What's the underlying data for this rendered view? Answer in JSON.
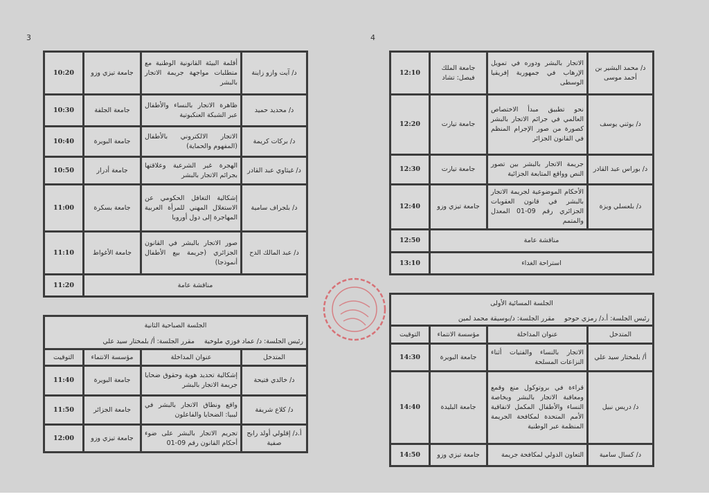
{
  "pages": {
    "left_number": "3",
    "right_number": "4"
  },
  "colors": {
    "paper": "#d3d3d3",
    "cell": "#d9d9d9",
    "border": "#3c3c3c",
    "stamp": "#d9474f"
  },
  "stamp": {
    "icon": "red-circular-seal-icon"
  },
  "left_top": {
    "rows": [
      {
        "type": "row",
        "speaker": "د/ آيت وازو زاينة",
        "title": "أقلمة البيئة القانونية الوطنية مع متطلبات مواجهة جريمة الاتجار بالبشر",
        "university": "جامعة تيزي وزو",
        "time": "10:20"
      },
      {
        "type": "row",
        "speaker": "د/ محديد حميد",
        "title": "ظاهرة الاتجار بالنساء والأطفال عبر الشبكة العنكبوتية",
        "university": "جامعة الجلفة",
        "time": "10:30"
      },
      {
        "type": "row",
        "speaker": "د/ بركات كريمة",
        "title": "الاتجار الالكتروني بالأطفال (المفهوم والحماية)",
        "university": "جامعة البويرة",
        "time": "10:40"
      },
      {
        "type": "row",
        "speaker": "د/ غيثاوي عبد القادر",
        "title": "الهجرة غير الشرعية وعلاقتها بجرائم الاتجار بالبشر",
        "university": "جامعة أدرار",
        "time": "10:50"
      },
      {
        "type": "row",
        "speaker": "د/ بلجراف سامية",
        "title": "إشكالية التغافل الحكومي عن الاستغلال المهني للمرأة العربية المهاجرة إلى دول أوروبا",
        "university": "جامعة بسكرة",
        "time": "11:00"
      },
      {
        "type": "row",
        "speaker": "د/ عبد المالك الدح",
        "title": "صور الاتجار بالبشر في القانون الجزائري (جريمة بيع الأطفال أنموذجا)",
        "university": "جامعة الأغواط",
        "time": "11:10"
      },
      {
        "type": "general",
        "label": "مناقشة عامة",
        "time": "11:20"
      }
    ]
  },
  "left_bottom": {
    "session_title": "الجلسة الصباحية الثانية",
    "chair": "رئيس الجلسة: د/ عماد فوزي ملوخية",
    "rapporteur": "مقرر الجلسة: أ/ بلمختار سيد علي",
    "columns": {
      "speaker": "المتدخل",
      "title": "عنوان المداخلة",
      "university": "مؤسسة الانتماء",
      "time": "التوقيت"
    },
    "rows": [
      {
        "type": "row",
        "speaker": "د/ خالدي فتيحة",
        "title": "إشكالية تحديد هوية وحقوق ضحايا جريمة الاتجار بالبشر",
        "university": "جامعة البويرة",
        "time": "11:40"
      },
      {
        "type": "row",
        "speaker": "د/ كلاع شريفة",
        "title": "واقع ونطاق الاتجار بالبشر في ليبيا: الضحايا والفاعلون",
        "university": "جامعة الجزائر",
        "time": "11:50"
      },
      {
        "type": "row",
        "speaker": "أ.د/ إقلولي أولد رابح صفية",
        "title": "تجريم الاتجار بالبشر على ضوء أحكام القانون رقم 09-01",
        "university": "جامعة تيزي وزو",
        "time": "12:00"
      }
    ]
  },
  "right_top": {
    "rows": [
      {
        "type": "row",
        "speaker": "د/ محمد البشير بن أحمد موسى",
        "title": "الاتجار بالبشر ودوره في تمويل الإرهاب في جمهورية إفريقيا الوسطى",
        "university": "جامعة الملك فيصل: تشاد",
        "time": "12:10"
      },
      {
        "type": "row",
        "speaker": "د/ بوثني يوسف",
        "title": "نحو تطبيق مبدأ الاختصاص العالمي في جرائم الاتجار بالبشر كصورة من صور الإجرام المنظم في القانون الجزائر",
        "university": "جامعة تيارت",
        "time": "12:20"
      },
      {
        "type": "row",
        "speaker": "د/ بوراس عبد القادر",
        "title": "جريمة الاتجار بالبشر بين تصور النص وواقع المتابعة الجزائية",
        "university": "جامعة تيارت",
        "time": "12:30"
      },
      {
        "type": "row",
        "speaker": "د/ بلعسلي ويزة",
        "title": "الأحكام الموضوعية لجريمة الاتجار بالبشر في قانون العقوبات الجزائري رقم 09-01 المعدل والمتمم",
        "university": "جامعة تيزي وزو",
        "time": "12:40"
      },
      {
        "type": "general",
        "label": "مناقشة عامة",
        "time": "12:50"
      },
      {
        "type": "general",
        "label": "استراحة الغداء",
        "time": "13:10"
      }
    ]
  },
  "right_bottom": {
    "session_title": "الجلسة المسائية الأولى",
    "chair": "رئيس الجلسة: أ.د/ رمزي حوحو",
    "rapporteur": "مقرر الجلسة: د/بوسيقة محمد لمين",
    "columns": {
      "speaker": "المتدخل",
      "title": "عنوان المداخلة",
      "university": "مؤسسة الانتماء",
      "time": "التوقيت"
    },
    "rows": [
      {
        "type": "row",
        "speaker": "أ/ بلمختار سيد علي",
        "title": "الاتجار بالنساء والفتيات أثناء النزاعات المسلحة",
        "university": "جامعة البويرة",
        "time": "14:30"
      },
      {
        "type": "row",
        "speaker": "د/ دريس نبيل",
        "title": "قراءة في بروتوكول منع وقمع ومعاقبة الاتجار بالبشر وبخاصة النساء والأطفال المكمل لاتفاقية الأمم المتحدة لمكافحة الجريمة المنظمة عبر الوطنية",
        "university": "جامعة البليدة",
        "time": "14:40"
      },
      {
        "type": "row",
        "speaker": "د/ كسال سامية",
        "title": "التعاون الدولي لمكافحة جريمة",
        "university": "جامعة تيزي وزو",
        "time": "14:50"
      }
    ]
  }
}
